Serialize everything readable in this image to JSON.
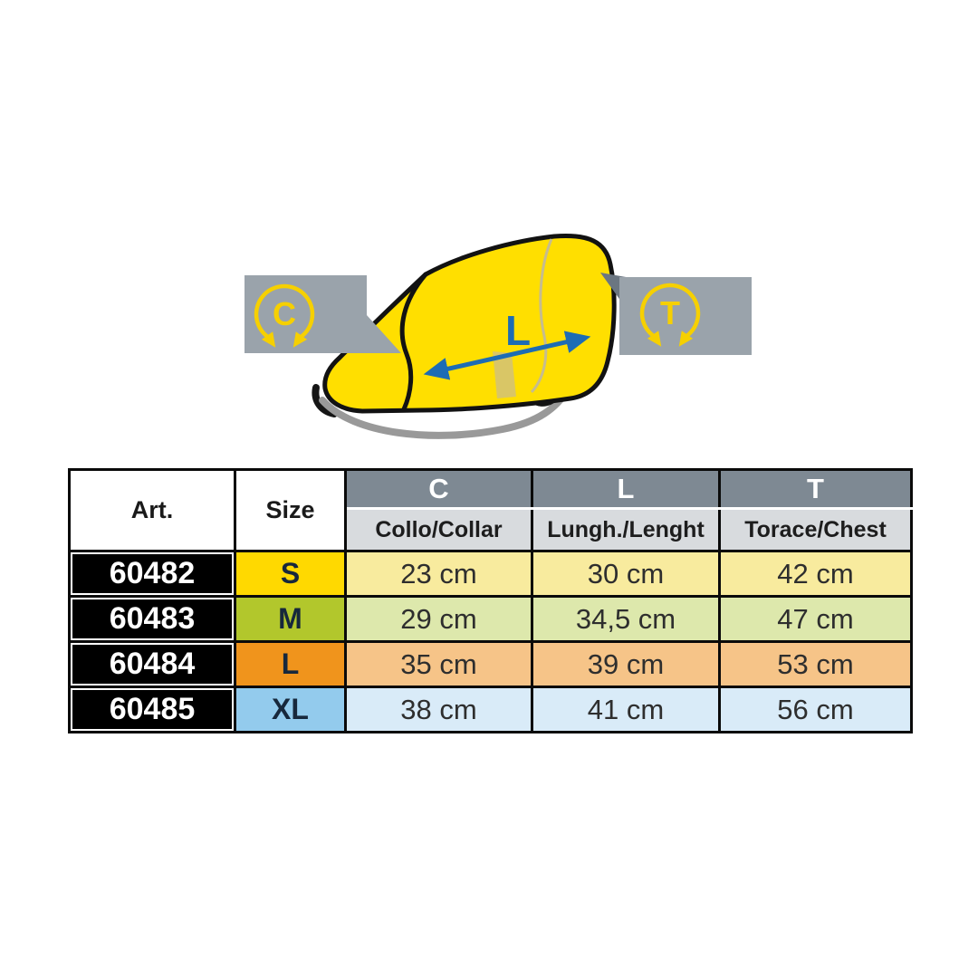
{
  "illustration": {
    "collar_label": "C",
    "chest_label": "T",
    "length_label": "L"
  },
  "table": {
    "col_art": "Art.",
    "col_size": "Size",
    "measure_headers": [
      {
        "letter": "C",
        "name": "Collo/Collar"
      },
      {
        "letter": "L",
        "name": "Lungh./Lenght"
      },
      {
        "letter": "T",
        "name": "Torace/Chest"
      }
    ],
    "rows": [
      {
        "art": "60482",
        "size": "S",
        "c": "23 cm",
        "l": "30 cm",
        "t": "42 cm",
        "size_color": "#ffd900",
        "data_color": "#f8eb9e"
      },
      {
        "art": "60483",
        "size": "M",
        "c": "29 cm",
        "l": "34,5 cm",
        "t": "47 cm",
        "size_color": "#b2c72c",
        "data_color": "#dde8ac"
      },
      {
        "art": "60484",
        "size": "L",
        "c": "35 cm",
        "l": "39 cm",
        "t": "53 cm",
        "size_color": "#f0941c",
        "data_color": "#f6c488"
      },
      {
        "art": "60485",
        "size": "XL",
        "c": "38 cm",
        "l": "41 cm",
        "t": "56 cm",
        "size_color": "#93cbed",
        "data_color": "#d9ebf8"
      }
    ]
  },
  "palette": {
    "header_dark": "#7e8993",
    "header_light": "#d8dbde",
    "vest_yellow": "#ffdf00",
    "vest_outline": "#121212",
    "callout_gray": "#9aa3ab",
    "callout_tail_dark": "#6b7681",
    "icon_yellow": "#f6d000",
    "arrow_blue": "#1d6cb4",
    "strap_gray": "#999999",
    "strap_black": "#151515",
    "strap_tan": "#d9c666"
  }
}
